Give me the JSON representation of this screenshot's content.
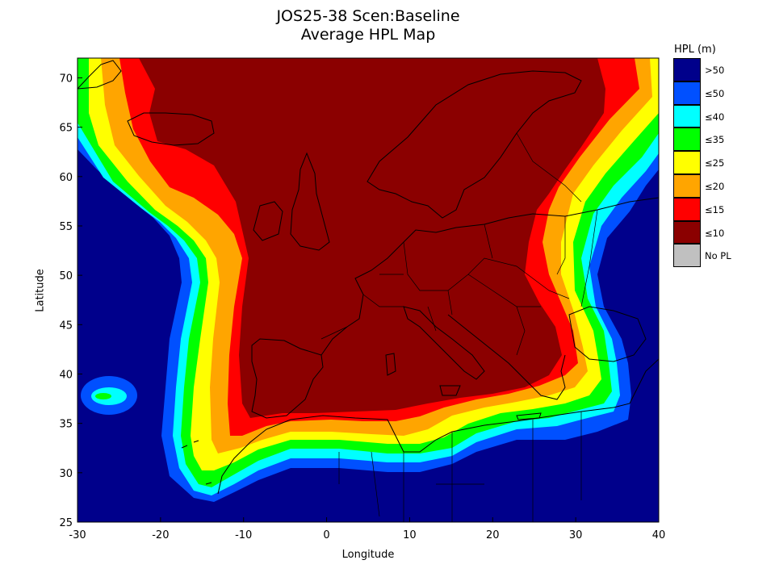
{
  "title_line1": "JOS25-38 Scen:Baseline",
  "title_line2": "Average HPL Map",
  "chart_data": {
    "type": "heatmap",
    "xlabel": "Longitude",
    "ylabel": "Latitude",
    "xlim": [
      -30,
      40
    ],
    "ylim": [
      25,
      72
    ],
    "xticks": [
      -30,
      -20,
      -10,
      0,
      10,
      20,
      30,
      40
    ],
    "yticks": [
      25,
      30,
      35,
      40,
      45,
      50,
      55,
      60,
      65,
      70
    ],
    "legend_title": "HPL (m)",
    "legend_placement": "right",
    "legend": [
      {
        "label": ">50",
        "color": "#00008b"
      },
      {
        "label": "≤50",
        "color": "#0050ff"
      },
      {
        "label": "≤40",
        "color": "#00ffff"
      },
      {
        "label": "≤35",
        "color": "#00ff00"
      },
      {
        "label": "≤25",
        "color": "#ffff00"
      },
      {
        "label": "≤20",
        "color": "#ffa500"
      },
      {
        "label": "≤15",
        "color": "#ff0000"
      },
      {
        "label": "≤10",
        "color": "#8b0000"
      },
      {
        "label": "No PL",
        "color": "#c0c0c0"
      }
    ]
  }
}
